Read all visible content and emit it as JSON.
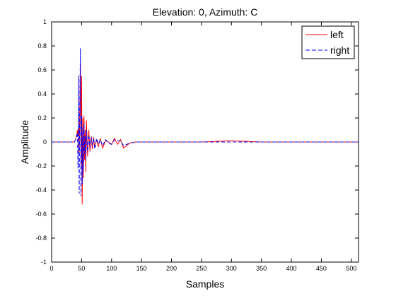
{
  "chart_data": {
    "type": "line",
    "title": "Elevation: 0, Azimuth: C",
    "xlabel": "Samples",
    "ylabel": "Amplitude",
    "xlim": [
      0,
      512
    ],
    "ylim": [
      -1,
      1
    ],
    "xticks": [
      0,
      50,
      100,
      150,
      200,
      250,
      300,
      350,
      400,
      450,
      500
    ],
    "yticks": [
      -1,
      -0.8,
      -0.6,
      -0.4,
      -0.2,
      0,
      0.2,
      0.4,
      0.6,
      0.8,
      1
    ],
    "ytick_labels": [
      "-1",
      "-0.8",
      "-0.6",
      "-0.4",
      "-0.2",
      "0",
      "0.2",
      "0.4",
      "0.6",
      "0.8",
      "1"
    ],
    "grid": false,
    "legend_position": "top-right",
    "series": [
      {
        "name": "left",
        "color": "#ff0000",
        "style": "solid",
        "x": [
          0,
          38,
          40,
          42,
          43,
          44,
          45,
          46,
          47,
          48,
          49,
          50,
          51,
          52,
          53,
          54,
          55,
          56,
          57,
          58,
          60,
          62,
          64,
          66,
          68,
          70,
          72,
          75,
          78,
          81,
          85,
          90,
          95,
          100,
          105,
          110,
          115,
          120,
          125,
          130,
          140,
          150,
          200,
          250,
          300,
          350,
          400,
          450,
          512
        ],
        "y": [
          0,
          0,
          0.02,
          0.06,
          0.1,
          0.05,
          0.12,
          -0.1,
          0.3,
          0.65,
          -0.2,
          0.55,
          -0.52,
          0.2,
          -0.3,
          0.22,
          -0.15,
          0.1,
          -0.25,
          0.18,
          -0.12,
          0.1,
          -0.08,
          0.05,
          -0.06,
          0.04,
          -0.05,
          0.02,
          -0.04,
          0.03,
          -0.05,
          0.01,
          0.0,
          -0.02,
          0.03,
          -0.02,
          0.02,
          -0.05,
          -0.03,
          -0.01,
          0.0,
          0.0,
          0.0,
          0.0,
          0.01,
          0.0,
          0.0,
          0.0,
          0.0
        ]
      },
      {
        "name": "right",
        "color": "#0000ff",
        "style": "dashed",
        "x": [
          0,
          38,
          40,
          42,
          43,
          44,
          45,
          46,
          47,
          48,
          49,
          50,
          51,
          52,
          53,
          54,
          55,
          56,
          57,
          58,
          60,
          62,
          64,
          66,
          68,
          70,
          72,
          75,
          78,
          81,
          85,
          90,
          95,
          100,
          105,
          110,
          115,
          120,
          125,
          130,
          140,
          150,
          200,
          250,
          300,
          350,
          400,
          450,
          512
        ],
        "y": [
          0,
          0,
          0.02,
          0.05,
          0.08,
          -0.22,
          0.55,
          -0.43,
          0.32,
          0.78,
          -0.45,
          0.22,
          -0.35,
          0.12,
          -0.25,
          0.15,
          -0.1,
          0.05,
          -0.15,
          0.1,
          -0.08,
          0.06,
          -0.05,
          0.04,
          -0.03,
          0.03,
          -0.06,
          0.03,
          -0.02,
          0.02,
          -0.03,
          0.02,
          -0.01,
          -0.02,
          0.02,
          0.01,
          0.01,
          -0.03,
          -0.02,
          -0.01,
          0.0,
          0.0,
          0.0,
          0.0,
          0.0,
          0.0,
          0.0,
          0.0,
          0.0
        ]
      }
    ]
  }
}
